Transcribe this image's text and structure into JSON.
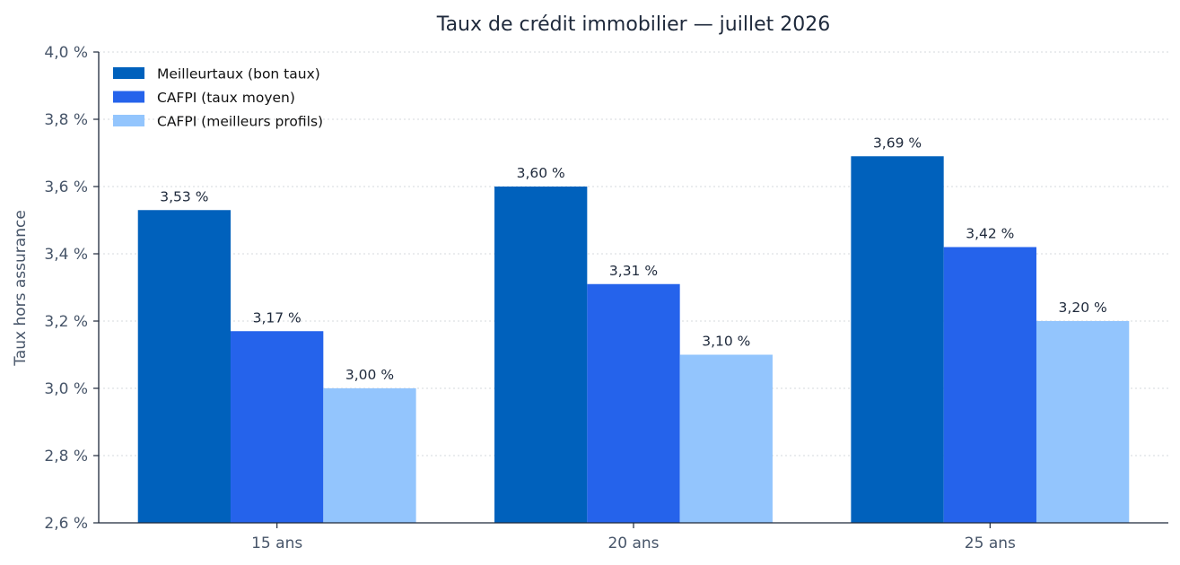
{
  "chart_data": {
    "type": "bar",
    "title": "Taux de crédit immobilier — juillet 2026",
    "xlabel": "",
    "ylabel": "Taux hors assurance",
    "categories": [
      "15 ans",
      "20 ans",
      "25 ans"
    ],
    "series": [
      {
        "name": "Meilleurtaux (bon taux)",
        "color": "#0061bc",
        "values": [
          3.53,
          3.6,
          3.69
        ],
        "labels": [
          "3,53 %",
          "3,60 %",
          "3,69 %"
        ]
      },
      {
        "name": "CAFPI (taux moyen)",
        "color": "#2563eb",
        "values": [
          3.17,
          3.31,
          3.42
        ],
        "labels": [
          "3,17 %",
          "3,31 %",
          "3,42 %"
        ]
      },
      {
        "name": "CAFPI (meilleurs profils)",
        "color": "#93c5fd",
        "values": [
          3.0,
          3.1,
          3.2
        ],
        "labels": [
          "3,00 %",
          "3,10 %",
          "3,20 %"
        ]
      }
    ],
    "ylim": [
      2.6,
      4.0
    ],
    "yticks": [
      2.6,
      2.8,
      3.0,
      3.2,
      3.4,
      3.6,
      3.8,
      4.0
    ],
    "ytick_labels": [
      "2,6 %",
      "2,8 %",
      "3,0 %",
      "3,2 %",
      "3,4 %",
      "3,6 %",
      "3,8 %",
      "4,0 %"
    ],
    "grid": true,
    "legend_position": "top-left"
  }
}
